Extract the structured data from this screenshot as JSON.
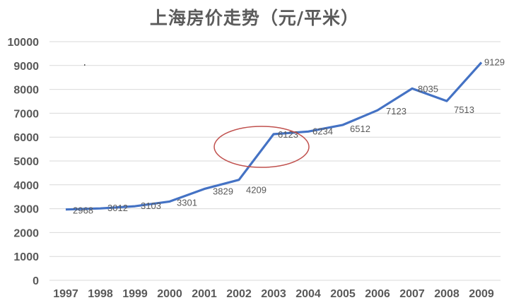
{
  "chart_data": {
    "type": "line",
    "title": "上海房价走势（元/平米）",
    "xlabel": "",
    "ylabel": "",
    "categories": [
      "1997",
      "1998",
      "1999",
      "2000",
      "2001",
      "2002",
      "2003",
      "2004",
      "2005",
      "2006",
      "2007",
      "2008",
      "2009"
    ],
    "series": [
      {
        "name": "上海房价",
        "values": [
          2968,
          3012,
          3103,
          3301,
          3829,
          4209,
          6123,
          6234,
          6512,
          7123,
          8035,
          7513,
          9129
        ],
        "color": "#4472C4"
      }
    ],
    "yticks": [
      "0",
      "1000",
      "2000",
      "3000",
      "4000",
      "5000",
      "6000",
      "7000",
      "8000",
      "9000",
      "10000"
    ],
    "ylim": [
      0,
      10000
    ],
    "grid": true,
    "legend": "none",
    "data_labels": true,
    "annotations": [
      {
        "type": "ellipse",
        "color": "#C0504D",
        "around": "2002-2003 jump"
      }
    ]
  },
  "colors": {
    "line": "#4472C4",
    "annotation": "#C0504D",
    "grid": "#D9D9D9",
    "text": "#595959"
  }
}
